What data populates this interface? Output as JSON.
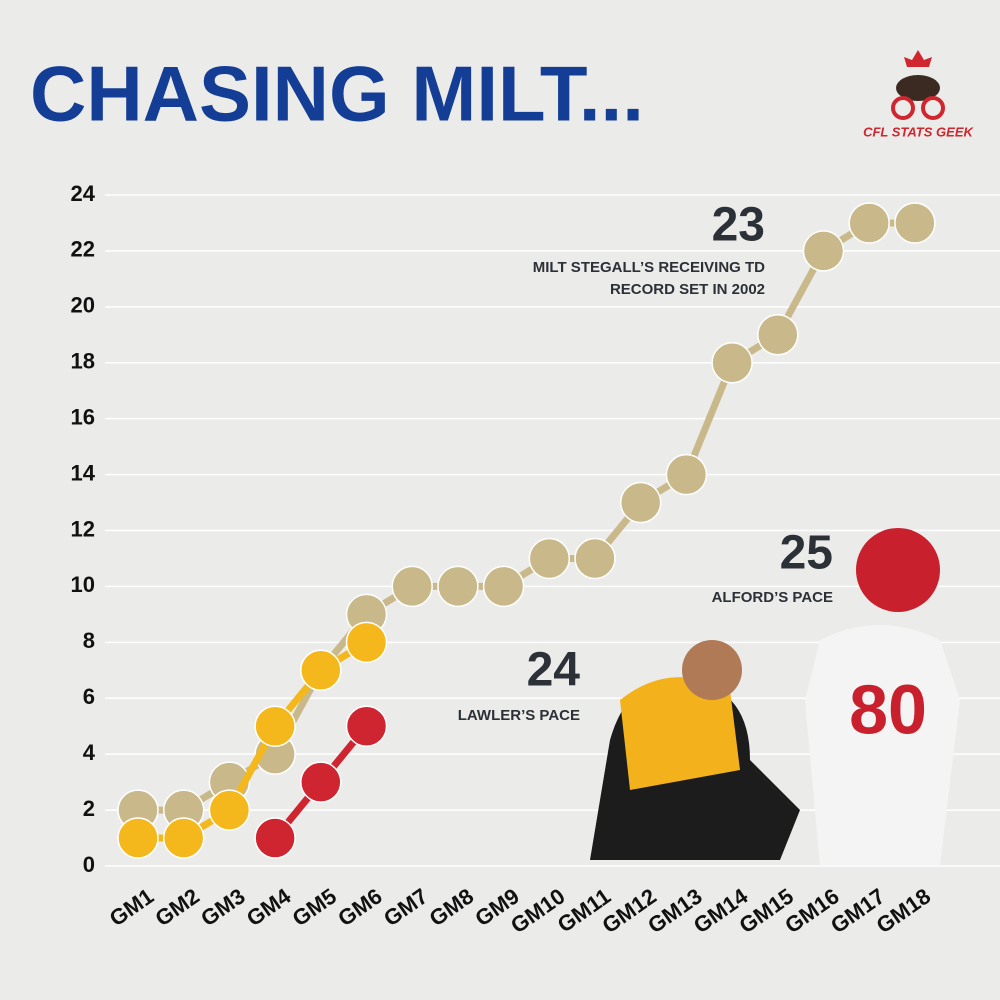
{
  "chart_data": {
    "type": "line",
    "title": "CHASING MILT...",
    "brand": "CFL STATS GEEK",
    "categories": [
      "GM1",
      "GM2",
      "GM3",
      "GM4",
      "GM5",
      "GM6",
      "GM7",
      "GM8",
      "GM9",
      "GM10",
      "GM11",
      "GM12",
      "GM13",
      "GM14",
      "GM15",
      "GM16",
      "GM17",
      "GM18"
    ],
    "series": [
      {
        "color": "#c9b98a",
        "values": [
          2,
          2,
          3,
          4,
          7,
          9,
          10,
          10,
          10,
          11,
          11,
          13,
          14,
          18,
          19,
          22,
          23,
          23
        ]
      },
      {
        "color": "#f4b81c",
        "values": [
          1,
          1,
          2,
          5,
          7,
          8,
          null,
          null,
          null,
          null,
          null,
          null,
          null,
          null,
          null,
          null,
          null,
          null
        ]
      },
      {
        "color": "#cf2530",
        "values": [
          null,
          null,
          null,
          1,
          3,
          5,
          null,
          null,
          null,
          null,
          null,
          null,
          null,
          null,
          null,
          null,
          null,
          null
        ]
      }
    ],
    "annotations": [
      {
        "text": "23",
        "lines": [
          "MILT STEGALL’S RECEIVING TD",
          "RECORD SET IN 2002"
        ]
      },
      {
        "text": "24",
        "lines": [
          "LAWLER’S PACE"
        ]
      },
      {
        "text": "25",
        "lines": [
          "ALFORD’S PACE"
        ]
      }
    ],
    "ylim": [
      0,
      24
    ],
    "yticks": [
      0,
      2,
      4,
      6,
      8,
      10,
      12,
      14,
      16,
      18,
      20,
      22,
      24
    ],
    "grid": true
  }
}
